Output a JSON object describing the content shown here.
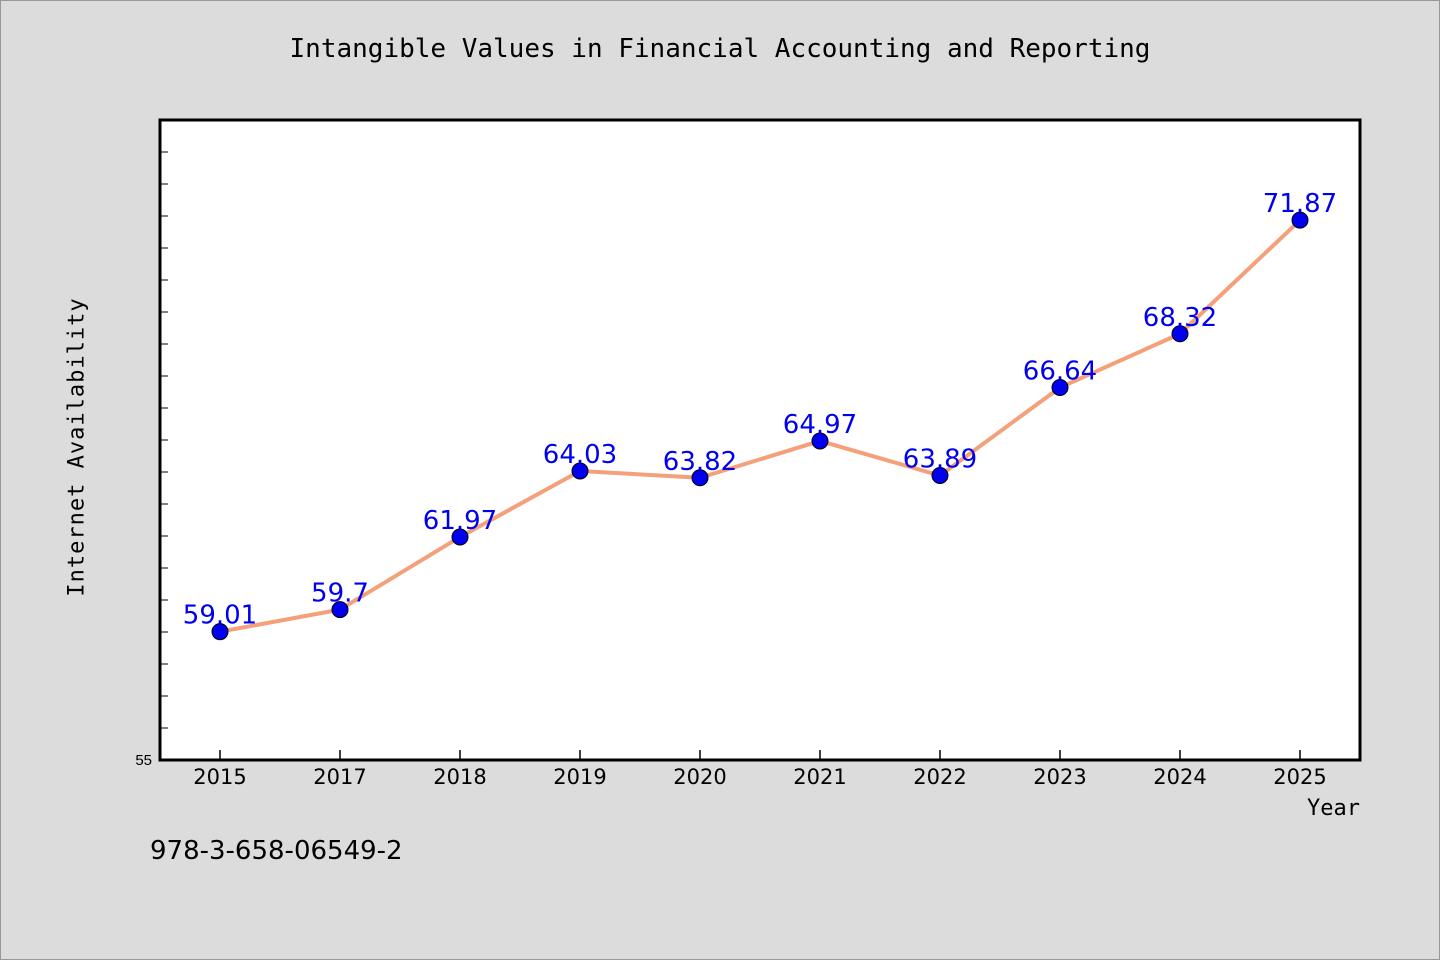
{
  "chart_data": {
    "type": "line",
    "title": "Intangible Values in Financial Accounting and Reporting",
    "xlabel": "Year",
    "ylabel": "Internet Availability",
    "categories": [
      "2015",
      "2017",
      "2018",
      "2019",
      "2020",
      "2021",
      "2022",
      "2023",
      "2024",
      "2025"
    ],
    "series": [
      {
        "values": [
          59.01,
          59.7,
          61.97,
          64.03,
          63.82,
          64.97,
          63.89,
          66.64,
          68.32,
          71.87
        ],
        "data_labels": [
          "59.01",
          "59.7",
          "61.97",
          "64.03",
          "63.82",
          "64.97",
          "63.89",
          "66.64",
          "68.32",
          "71.87"
        ]
      }
    ],
    "ylim": [
      55,
      75
    ],
    "y_tick_labels": [
      "55"
    ],
    "grid": false,
    "colors": {
      "line": "#f4a07a",
      "marker": "#0000ee",
      "label": "#0000ee"
    }
  },
  "footer": {
    "isbn": "978-3-658-06549-2"
  }
}
